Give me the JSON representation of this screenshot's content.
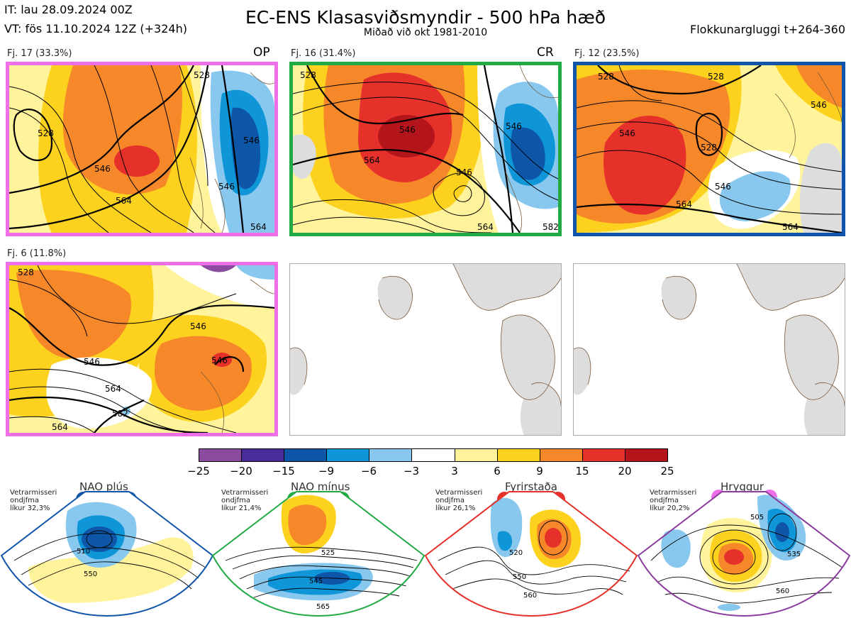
{
  "header": {
    "init_time": "IT: lau 28.09.2024 00Z",
    "valid_time": "VT: fös 11.10.2024 12Z  (+324h)",
    "title": "EC-ENS Klasasviðsmyndir - 500 hPa hæð",
    "subtitle": "Miðað við okt 1981-2010",
    "window": "Flokkunargluggi t+264-360"
  },
  "panels": [
    {
      "label": "Fj. 17 (33.3%)",
      "tag": "OP",
      "border_color": "#ee6fe8",
      "contour_labels": [
        "528",
        "546",
        "564",
        "546",
        "528",
        "546",
        "564"
      ]
    },
    {
      "label": "Fj. 16 (31.4%)",
      "tag": "CR",
      "border_color": "#22aa44",
      "contour_labels": [
        "528",
        "546",
        "564",
        "546",
        "546",
        "564",
        "582"
      ]
    },
    {
      "label": "Fj. 12 (23.5%)",
      "tag": "",
      "border_color": "#1155aa",
      "contour_labels": [
        "528",
        "528",
        "546",
        "528",
        "546",
        "564",
        "564",
        "546"
      ]
    },
    {
      "label": "Fj. 6 (11.8%)",
      "tag": "",
      "border_color": "#ee6fe8",
      "contour_labels": [
        "528",
        "546",
        "546",
        "564",
        "546",
        "564",
        "582"
      ]
    }
  ],
  "colorbar": {
    "colors": [
      "#8b4b9e",
      "#4a2c9a",
      "#0e57a8",
      "#0e96d8",
      "#88c8ee",
      "#ffffff",
      "#fff49c",
      "#fdd21e",
      "#f6882a",
      "#e6302a",
      "#b3151a"
    ],
    "ticks": [
      "−25",
      "−20",
      "−15",
      "−9",
      "−6",
      "−3",
      "3",
      "6",
      "9",
      "15",
      "20",
      "25"
    ]
  },
  "regimes": [
    {
      "name": "NAO plús",
      "note": [
        "Vetrarmisseri",
        "ondjfma",
        "líkur 32,3%"
      ],
      "color": "#0e57a8",
      "contour_labels": [
        "510",
        "550"
      ]
    },
    {
      "name": "NAO mínus",
      "note": [
        "Vetrarmisseri",
        "ondjfma",
        "líkur 21,4%"
      ],
      "color": "#22aa44",
      "contour_labels": [
        "525",
        "545",
        "565"
      ]
    },
    {
      "name": "Fyrirstaða",
      "note": [
        "Vetrarmisseri",
        "ondjfma",
        "líkur 26,1%"
      ],
      "color": "#e6302a",
      "contour_labels": [
        "520",
        "550",
        "560"
      ]
    },
    {
      "name": "Hryggur",
      "note": [
        "Vetrarmisseri",
        "ondjfma",
        "líkur 20,2%"
      ],
      "color": "#ee6fe8",
      "contour_labels": [
        "505",
        "535",
        "560"
      ]
    }
  ]
}
